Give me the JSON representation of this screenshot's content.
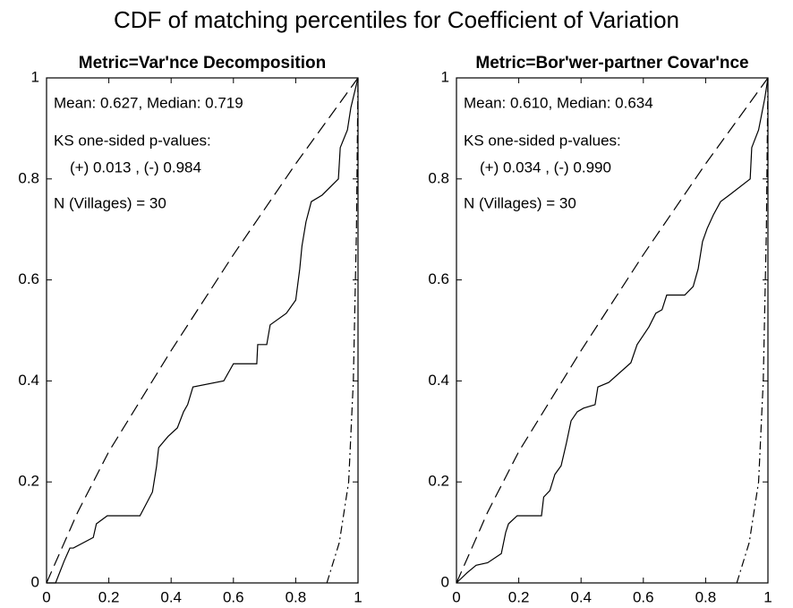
{
  "title": "CDF of matching percentiles for Coefficient of Variation",
  "chart_data": [
    {
      "type": "line",
      "title": "Metric=Var'nce Decomposition",
      "annotations": [
        "Mean: 0.627,  Median: 0.719",
        "KS one-sided p-values:",
        "(+) 0.013 ,  (-) 0.984",
        "N (Villages) = 30"
      ],
      "xlim": [
        0,
        1
      ],
      "ylim": [
        0,
        1
      ],
      "xticks": [
        0,
        0.2,
        0.4,
        0.6,
        0.8,
        1
      ],
      "yticks": [
        0,
        0.2,
        0.4,
        0.6,
        0.8,
        1
      ],
      "series": [
        {
          "color": "#000000",
          "dash": "solid",
          "x": [
            0,
            0.029,
            0.057,
            0.075,
            0.086,
            0.15,
            0.16,
            0.195,
            0.3,
            0.34,
            0.353,
            0.36,
            0.39,
            0.42,
            0.44,
            0.453,
            0.47,
            0.569,
            0.6,
            0.675,
            0.678,
            0.707,
            0.718,
            0.77,
            0.8,
            0.813,
            0.82,
            0.833,
            0.85,
            0.885,
            0.937,
            0.943,
            0.966,
            0.977,
            1
          ],
          "values": [
            0,
            0,
            0.044,
            0.069,
            0.069,
            0.09,
            0.117,
            0.133,
            0.133,
            0.18,
            0.23,
            0.268,
            0.29,
            0.307,
            0.339,
            0.353,
            0.388,
            0.4,
            0.434,
            0.434,
            0.472,
            0.472,
            0.511,
            0.534,
            0.56,
            0.622,
            0.667,
            0.715,
            0.755,
            0.768,
            0.8,
            0.862,
            0.897,
            0.941,
            1
          ]
        },
        {
          "color": "#000000",
          "dash": "dashed",
          "x": [
            0,
            0.1,
            0.2,
            0.4,
            0.6,
            0.8,
            1
          ],
          "values": [
            0,
            0.14,
            0.26,
            0.46,
            0.65,
            0.83,
            1
          ]
        },
        {
          "color": "#000000",
          "dash": "dashdot",
          "x": [
            0.9,
            0.94,
            0.97,
            0.985,
            0.995,
            1
          ],
          "values": [
            0,
            0.08,
            0.2,
            0.4,
            0.7,
            1
          ]
        }
      ]
    },
    {
      "type": "line",
      "title": "Metric=Bor'wer-partner Covar'nce",
      "annotations": [
        "Mean: 0.610,  Median: 0.634",
        "KS one-sided p-values:",
        "(+) 0.034 ,  (-) 0.990",
        "N (Villages) = 30"
      ],
      "xlim": [
        0,
        1
      ],
      "ylim": [
        0,
        1
      ],
      "xticks": [
        0,
        0.2,
        0.4,
        0.6,
        0.8,
        1
      ],
      "yticks": [
        0,
        0.2,
        0.4,
        0.6,
        0.8,
        1
      ],
      "series": [
        {
          "color": "#000000",
          "dash": "solid",
          "x": [
            0,
            0.034,
            0.063,
            0.1,
            0.144,
            0.158,
            0.167,
            0.195,
            0.273,
            0.28,
            0.3,
            0.316,
            0.336,
            0.353,
            0.368,
            0.388,
            0.408,
            0.445,
            0.454,
            0.489,
            0.56,
            0.58,
            0.618,
            0.64,
            0.66,
            0.675,
            0.733,
            0.76,
            0.776,
            0.79,
            0.805,
            0.825,
            0.848,
            0.876,
            0.943,
            0.948,
            0.97,
            0.99,
            1
          ],
          "values": [
            0,
            0.02,
            0.035,
            0.04,
            0.058,
            0.1,
            0.117,
            0.133,
            0.133,
            0.17,
            0.183,
            0.215,
            0.232,
            0.277,
            0.321,
            0.339,
            0.346,
            0.353,
            0.388,
            0.397,
            0.436,
            0.472,
            0.507,
            0.534,
            0.541,
            0.57,
            0.57,
            0.587,
            0.622,
            0.676,
            0.702,
            0.729,
            0.755,
            0.768,
            0.8,
            0.862,
            0.897,
            0.96,
            1
          ]
        },
        {
          "color": "#000000",
          "dash": "dashed",
          "x": [
            0,
            0.1,
            0.2,
            0.4,
            0.6,
            0.8,
            1
          ],
          "values": [
            0,
            0.14,
            0.26,
            0.46,
            0.65,
            0.83,
            1
          ]
        },
        {
          "color": "#000000",
          "dash": "dashdot",
          "x": [
            0.9,
            0.94,
            0.97,
            0.985,
            0.995,
            1
          ],
          "values": [
            0,
            0.08,
            0.2,
            0.4,
            0.7,
            1
          ]
        }
      ]
    }
  ]
}
